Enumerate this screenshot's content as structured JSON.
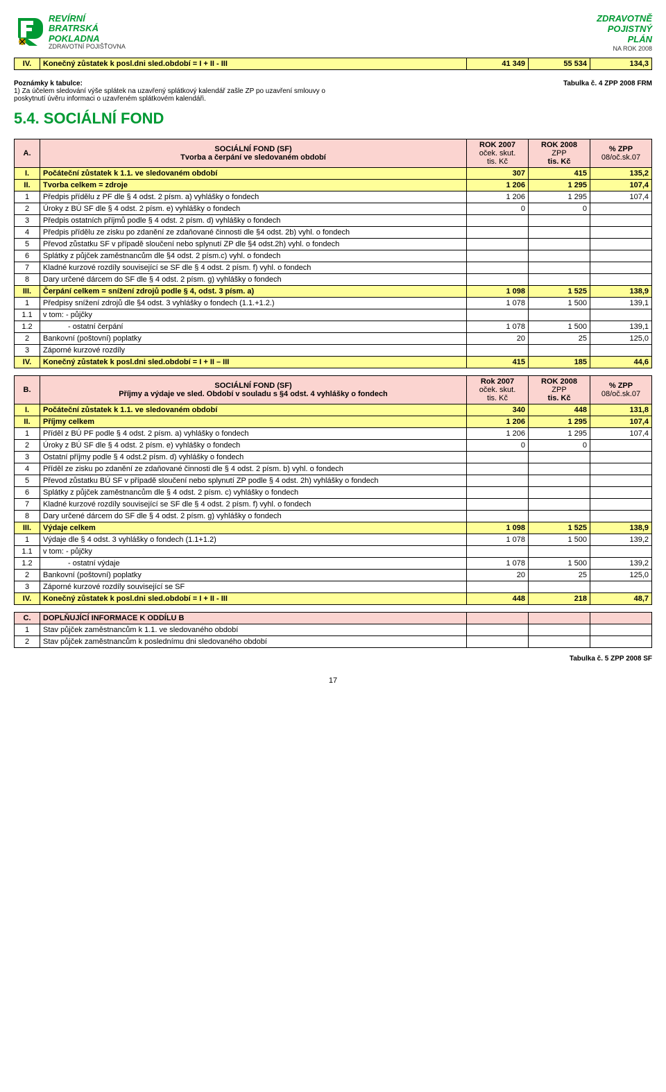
{
  "header": {
    "left": {
      "l1": "REVÍRNÍ",
      "l2": "BRATRSKÁ",
      "l3": "POKLADNA",
      "l4": "ZDRAVOTNÍ POJIŠŤOVNA"
    },
    "right": {
      "l1": "ZDRAVOTNĚ",
      "l2": "POJISTNÝ",
      "l3": "PLÁN",
      "l4": "NA ROK 2008"
    }
  },
  "topTable": {
    "row": {
      "n": "IV.",
      "label": "Konečný zůstatek k posl.dni sled.období  = I + II - III",
      "v1": "41 349",
      "v2": "55 534",
      "v3": "134,3"
    }
  },
  "notes": {
    "title": "Poznámky k tabulce:",
    "line1": "1) Za účelem sledování výše splátek na uzavřený splátkový kalendář zašle ZP po uzavření smlouvy o",
    "line2": "poskytnutí úvěru informaci o uzavřeném splátkovém kalendáři."
  },
  "tabref1": "Tabulka č. 4 ZPP 2008 FRM",
  "section": "5.4.  SOCIÁLNÍ  FOND",
  "tableA": {
    "head": {
      "n": "A.",
      "title1": "SOCIÁLNÍ FOND (SF)",
      "title2": "Tvorba a čerpání ve sledovaném období",
      "c1a": "ROK 2007",
      "c1b": "oček. skut.",
      "c1c": "tis. Kč",
      "c2a": "ROK 2008",
      "c2b": "ZPP",
      "c2c": "tis. Kč",
      "c3a": "% ZPP",
      "c3b": "08/oč.sk.07"
    },
    "rows": [
      {
        "cls": "yellow bold",
        "n": "I.",
        "label": "Počáteční zůstatek k 1.1. ve sledovaném období",
        "v1": "307",
        "v2": "415",
        "v3": "135,2"
      },
      {
        "cls": "yellow bold",
        "n": "II.",
        "label": "Tvorba celkem = zdroje",
        "v1": "1 206",
        "v2": "1 295",
        "v3": "107,4"
      },
      {
        "cls": "",
        "n": "1",
        "label": "Předpis přídělu z PF dle § 4 odst. 2 písm. a) vyhlášky o fondech",
        "v1": "1 206",
        "v2": "1 295",
        "v3": "107,4"
      },
      {
        "cls": "",
        "n": "2",
        "label": "Úroky z BÚ SF dle § 4 odst. 2 písm. e) vyhlášky o fondech",
        "v1": "0",
        "v2": "0",
        "v3": ""
      },
      {
        "cls": "",
        "n": "3",
        "label": "Předpis ostatních příjmů podle § 4 odst. 2 písm. d) vyhlášky o fondech",
        "v1": "",
        "v2": "",
        "v3": ""
      },
      {
        "cls": "",
        "n": "4",
        "label": "Předpis přídělu ze zisku po zdanění ze zdaňované činnosti dle §4 odst. 2b) vyhl. o fondech",
        "v1": "",
        "v2": "",
        "v3": ""
      },
      {
        "cls": "",
        "n": "5",
        "label": "Převod zůstatku SF v případě sloučení  nebo splynutí ZP dle §4 odst.2h) vyhl. o fondech",
        "v1": "",
        "v2": "",
        "v3": ""
      },
      {
        "cls": "",
        "n": "6",
        "label": "Splátky z půjček zaměstnancům dle §4 odst. 2 písm.c) vyhl. o fondech",
        "v1": "",
        "v2": "",
        "v3": ""
      },
      {
        "cls": "",
        "n": "7",
        "label": "Kladné kurzové rozdíly související se SF dle § 4 odst. 2 písm. f) vyhl. o fondech",
        "v1": "",
        "v2": "",
        "v3": ""
      },
      {
        "cls": "",
        "n": "8",
        "label": "Dary určené dárcem do SF dle § 4 odst. 2 písm. g) vyhlášky o fondech",
        "v1": "",
        "v2": "",
        "v3": ""
      },
      {
        "cls": "yellow bold",
        "n": "III.",
        "label": "Čerpání celkem = snížení zdrojů podle § 4, odst. 3 písm. a)",
        "v1": "1 098",
        "v2": "1 525",
        "v3": "138,9"
      },
      {
        "cls": "",
        "n": "1",
        "label": "Předpisy snížení zdrojů dle §4 odst. 3 vyhlášky o fondech (1.1.+1.2.)",
        "v1": "1 078",
        "v2": "1 500",
        "v3": "139,1"
      },
      {
        "cls": "",
        "n": "1.1",
        "label": "v tom:   - půjčky",
        "v1": "",
        "v2": "",
        "v3": ""
      },
      {
        "cls": "",
        "n": "1.2",
        "label": "            - ostatní čerpání",
        "indent": true,
        "v1": "1 078",
        "v2": "1 500",
        "v3": "139,1"
      },
      {
        "cls": "",
        "n": "2",
        "label": "Bankovní (poštovní) poplatky",
        "v1": "20",
        "v2": "25",
        "v3": "125,0"
      },
      {
        "cls": "",
        "n": "3",
        "label": "Záporné kurzové rozdíly",
        "v1": "",
        "v2": "",
        "v3": ""
      },
      {
        "cls": "yellow bold",
        "n": "IV.",
        "label": "Konečný zůstatek k posl.dni sled.období  = I + II – III",
        "v1": "415",
        "v2": "185",
        "v3": "44,6"
      }
    ]
  },
  "tableB": {
    "head": {
      "n": "B.",
      "title1": "SOCIÁLNÍ FOND (SF)",
      "title2": "Příjmy a výdaje ve sled. Období v souladu s §4 odst. 4 vyhlášky o fondech",
      "c1a": "Rok 2007",
      "c1b": "oček. skut.",
      "c1c": "tis. Kč",
      "c2a": "ROK 2008",
      "c2b": "ZPP",
      "c2c": "tis. Kč",
      "c3a": "% ZPP",
      "c3b": "08/oč.sk.07"
    },
    "rows": [
      {
        "cls": "yellow bold",
        "n": "I.",
        "label": "Počáteční zůstatek k 1.1. ve sledovaném období",
        "v1": "340",
        "v2": "448",
        "v3": "131,8"
      },
      {
        "cls": "yellow bold",
        "n": "II.",
        "label": "Příjmy celkem",
        "v1": "1 206",
        "v2": "1 295",
        "v3": "107,4"
      },
      {
        "cls": "",
        "n": "1",
        "label": "Příděl z BÚ PF podle § 4 odst. 2 písm. a) vyhlášky o fondech",
        "v1": "1 206",
        "v2": "1 295",
        "v3": "107,4"
      },
      {
        "cls": "",
        "n": "2",
        "label": "Úroky z BÚ SF dle § 4 odst. 2 písm. e) vyhlášky o fondech",
        "v1": "0",
        "v2": "0",
        "v3": ""
      },
      {
        "cls": "",
        "n": "3",
        "label": "Ostatní příjmy podle § 4 odst.2 písm. d) vyhlášky o fondech",
        "v1": "",
        "v2": "",
        "v3": ""
      },
      {
        "cls": "",
        "n": "4",
        "label": "Příděl ze zisku po zdanění ze zdaňované činnosti dle § 4 odst. 2 písm. b) vyhl. o fondech",
        "v1": "",
        "v2": "",
        "v3": ""
      },
      {
        "cls": "",
        "n": "5",
        "label": "Převod zůstatku BÚ SF v případě sloučení  nebo splynutí ZP podle § 4 odst. 2h) vyhlášky o fondech",
        "v1": "",
        "v2": "",
        "v3": ""
      },
      {
        "cls": "",
        "n": "6",
        "label": "Splátky z půjček  zaměstnancům dle § 4 odst. 2 písm. c) vyhlášky o fondech",
        "v1": "",
        "v2": "",
        "v3": ""
      },
      {
        "cls": "",
        "n": "7",
        "label": "Kladné kurzové rozdíly související se SF dle § 4 odst. 2 písm. f) vyhl. o fondech",
        "v1": "",
        "v2": "",
        "v3": ""
      },
      {
        "cls": "",
        "n": "8",
        "label": "Dary určené dárcem do SF dle § 4 odst. 2 písm. g) vyhlášky o fondech",
        "v1": "",
        "v2": "",
        "v3": ""
      },
      {
        "cls": "yellow bold",
        "n": "III.",
        "label": "Výdaje celkem",
        "v1": "1 098",
        "v2": "1 525",
        "v3": "138,9"
      },
      {
        "cls": "",
        "n": "1",
        "label": "Výdaje  dle § 4 odst. 3 vyhlášky o fondech (1.1+1.2)",
        "v1": "1 078",
        "v2": "1 500",
        "v3": "139,2"
      },
      {
        "cls": "",
        "n": "1.1",
        "label": "v tom:  - půjčky",
        "v1": "",
        "v2": "",
        "v3": ""
      },
      {
        "cls": "",
        "n": "1.2",
        "label": "            - ostatní výdaje",
        "indent": true,
        "v1": "1 078",
        "v2": "1 500",
        "v3": "139,2"
      },
      {
        "cls": "",
        "n": "2",
        "label": "Bankovní (poštovní) poplatky",
        "v1": "20",
        "v2": "25",
        "v3": "125,0"
      },
      {
        "cls": "",
        "n": "3",
        "label": "Záporné kurzové rozdíly související se SF",
        "v1": "",
        "v2": "",
        "v3": ""
      },
      {
        "cls": "yellow bold",
        "n": "IV.",
        "label": "Konečný zůstatek k posl.dni sled.období  = I + II - III",
        "v1": "448",
        "v2": "218",
        "v3": "48,7"
      }
    ]
  },
  "tableC": {
    "head": {
      "n": "C.",
      "title": "DOPLŇUJÍCÍ INFORMACE K ODDÍLU B"
    },
    "rows": [
      {
        "n": "1",
        "label": "Stav půjček zaměstnancům  k 1.1. ve sledovaného období"
      },
      {
        "n": "2",
        "label": "Stav půjček zaměstnancům  k poslednímu dni sledovaného období"
      }
    ]
  },
  "tabref2": "Tabulka č. 5 ZPP 2008 SF",
  "pagenum": "17",
  "colors": {
    "green": "#009933",
    "yellow": "#ffff99",
    "pink": "#fbd4d0"
  }
}
